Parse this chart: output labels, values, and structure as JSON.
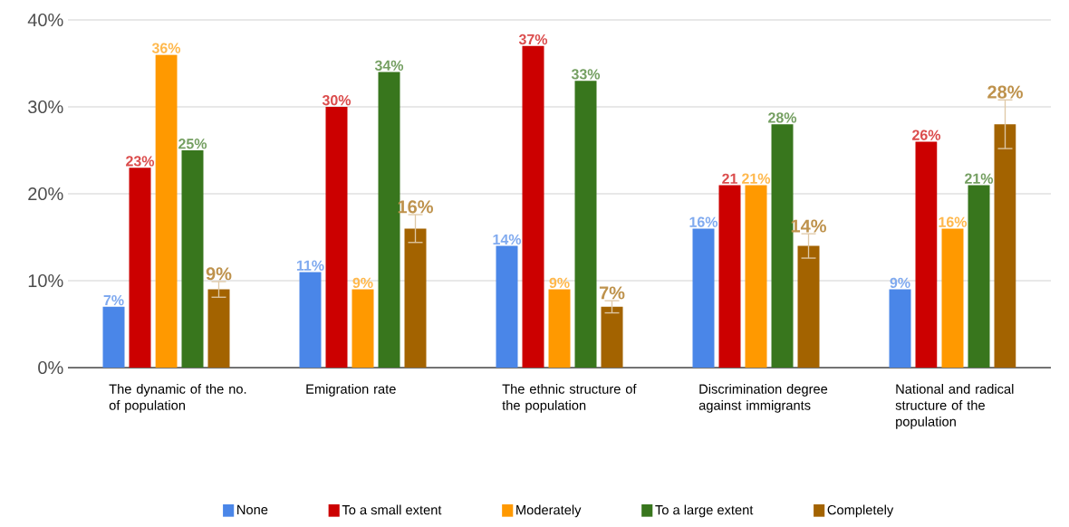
{
  "chart_data": {
    "type": "bar",
    "categories": [
      "The dynamic of the no. of population",
      "Emigration rate",
      "The ethnic structure of the population",
      "Discrimination degree against immigrants",
      "National and radical structure of the population"
    ],
    "series": [
      {
        "name": "None",
        "color": "#4a86e8",
        "values": [
          7,
          11,
          14,
          16,
          9
        ],
        "value_labels": [
          "7%",
          "11%",
          "14%",
          "16%",
          "9%"
        ]
      },
      {
        "name": "To a small extent",
        "color": "#cc0000",
        "values": [
          23,
          30,
          37,
          21,
          26
        ],
        "value_labels": [
          "23%",
          "30%",
          "37%",
          "21",
          "26%"
        ]
      },
      {
        "name": "Moderately",
        "color": "#ff9900",
        "values": [
          36,
          9,
          9,
          21,
          16
        ],
        "value_labels": [
          "36%",
          "9%",
          "9%",
          "21%",
          "16%"
        ]
      },
      {
        "name": "To a large extent",
        "color": "#38761d",
        "values": [
          25,
          34,
          33,
          28,
          21
        ],
        "value_labels": [
          "25%",
          "34%",
          "33%",
          "28%",
          "21%"
        ]
      },
      {
        "name": "Completely",
        "color": "#a36300",
        "values": [
          9,
          16,
          7,
          14,
          28
        ],
        "value_labels": [
          "9%",
          "16%",
          "7%",
          "14%",
          "28%"
        ],
        "errors": [
          0.9,
          1.6,
          0.7,
          1.4,
          2.8
        ]
      }
    ],
    "ylim": [
      0,
      40
    ],
    "yticks": [
      {
        "value": 0,
        "label": "0%"
      },
      {
        "value": 10,
        "label": "10%"
      },
      {
        "value": 20,
        "label": "20%"
      },
      {
        "value": 30,
        "label": "30%"
      },
      {
        "value": 40,
        "label": "40%"
      }
    ],
    "grid": "y",
    "legend": "bottom"
  }
}
